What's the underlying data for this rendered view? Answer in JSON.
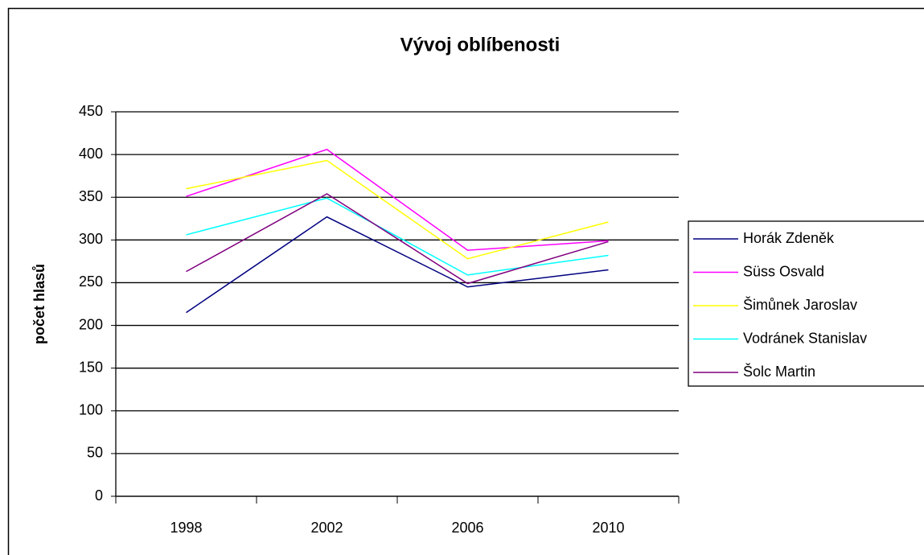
{
  "chart_data": {
    "type": "line",
    "title": "Vývoj oblíbenosti",
    "y_label": "počet hlasů",
    "categories": [
      "1998",
      "2002",
      "2006",
      "2010"
    ],
    "series": [
      {
        "name": "Horák Zdeněk",
        "color": "#000080",
        "values": [
          215,
          327,
          245,
          265
        ]
      },
      {
        "name": "Süss Osvald",
        "color": "#ff00ff",
        "values": [
          351,
          406,
          288,
          299
        ]
      },
      {
        "name": "Šimůnek Jaroslav",
        "color": "#ffff00",
        "values": [
          360,
          393,
          278,
          321
        ]
      },
      {
        "name": "Vodránek Stanislav",
        "color": "#00ffff",
        "values": [
          306,
          349,
          259,
          282
        ]
      },
      {
        "name": "Šolc Martin",
        "color": "#800080",
        "values": [
          263,
          354,
          249,
          298
        ]
      }
    ],
    "ylim": [
      0,
      450
    ],
    "yticks": [
      0,
      50,
      100,
      150,
      200,
      250,
      300,
      350,
      400,
      450
    ],
    "grid": true,
    "legend": "right"
  }
}
